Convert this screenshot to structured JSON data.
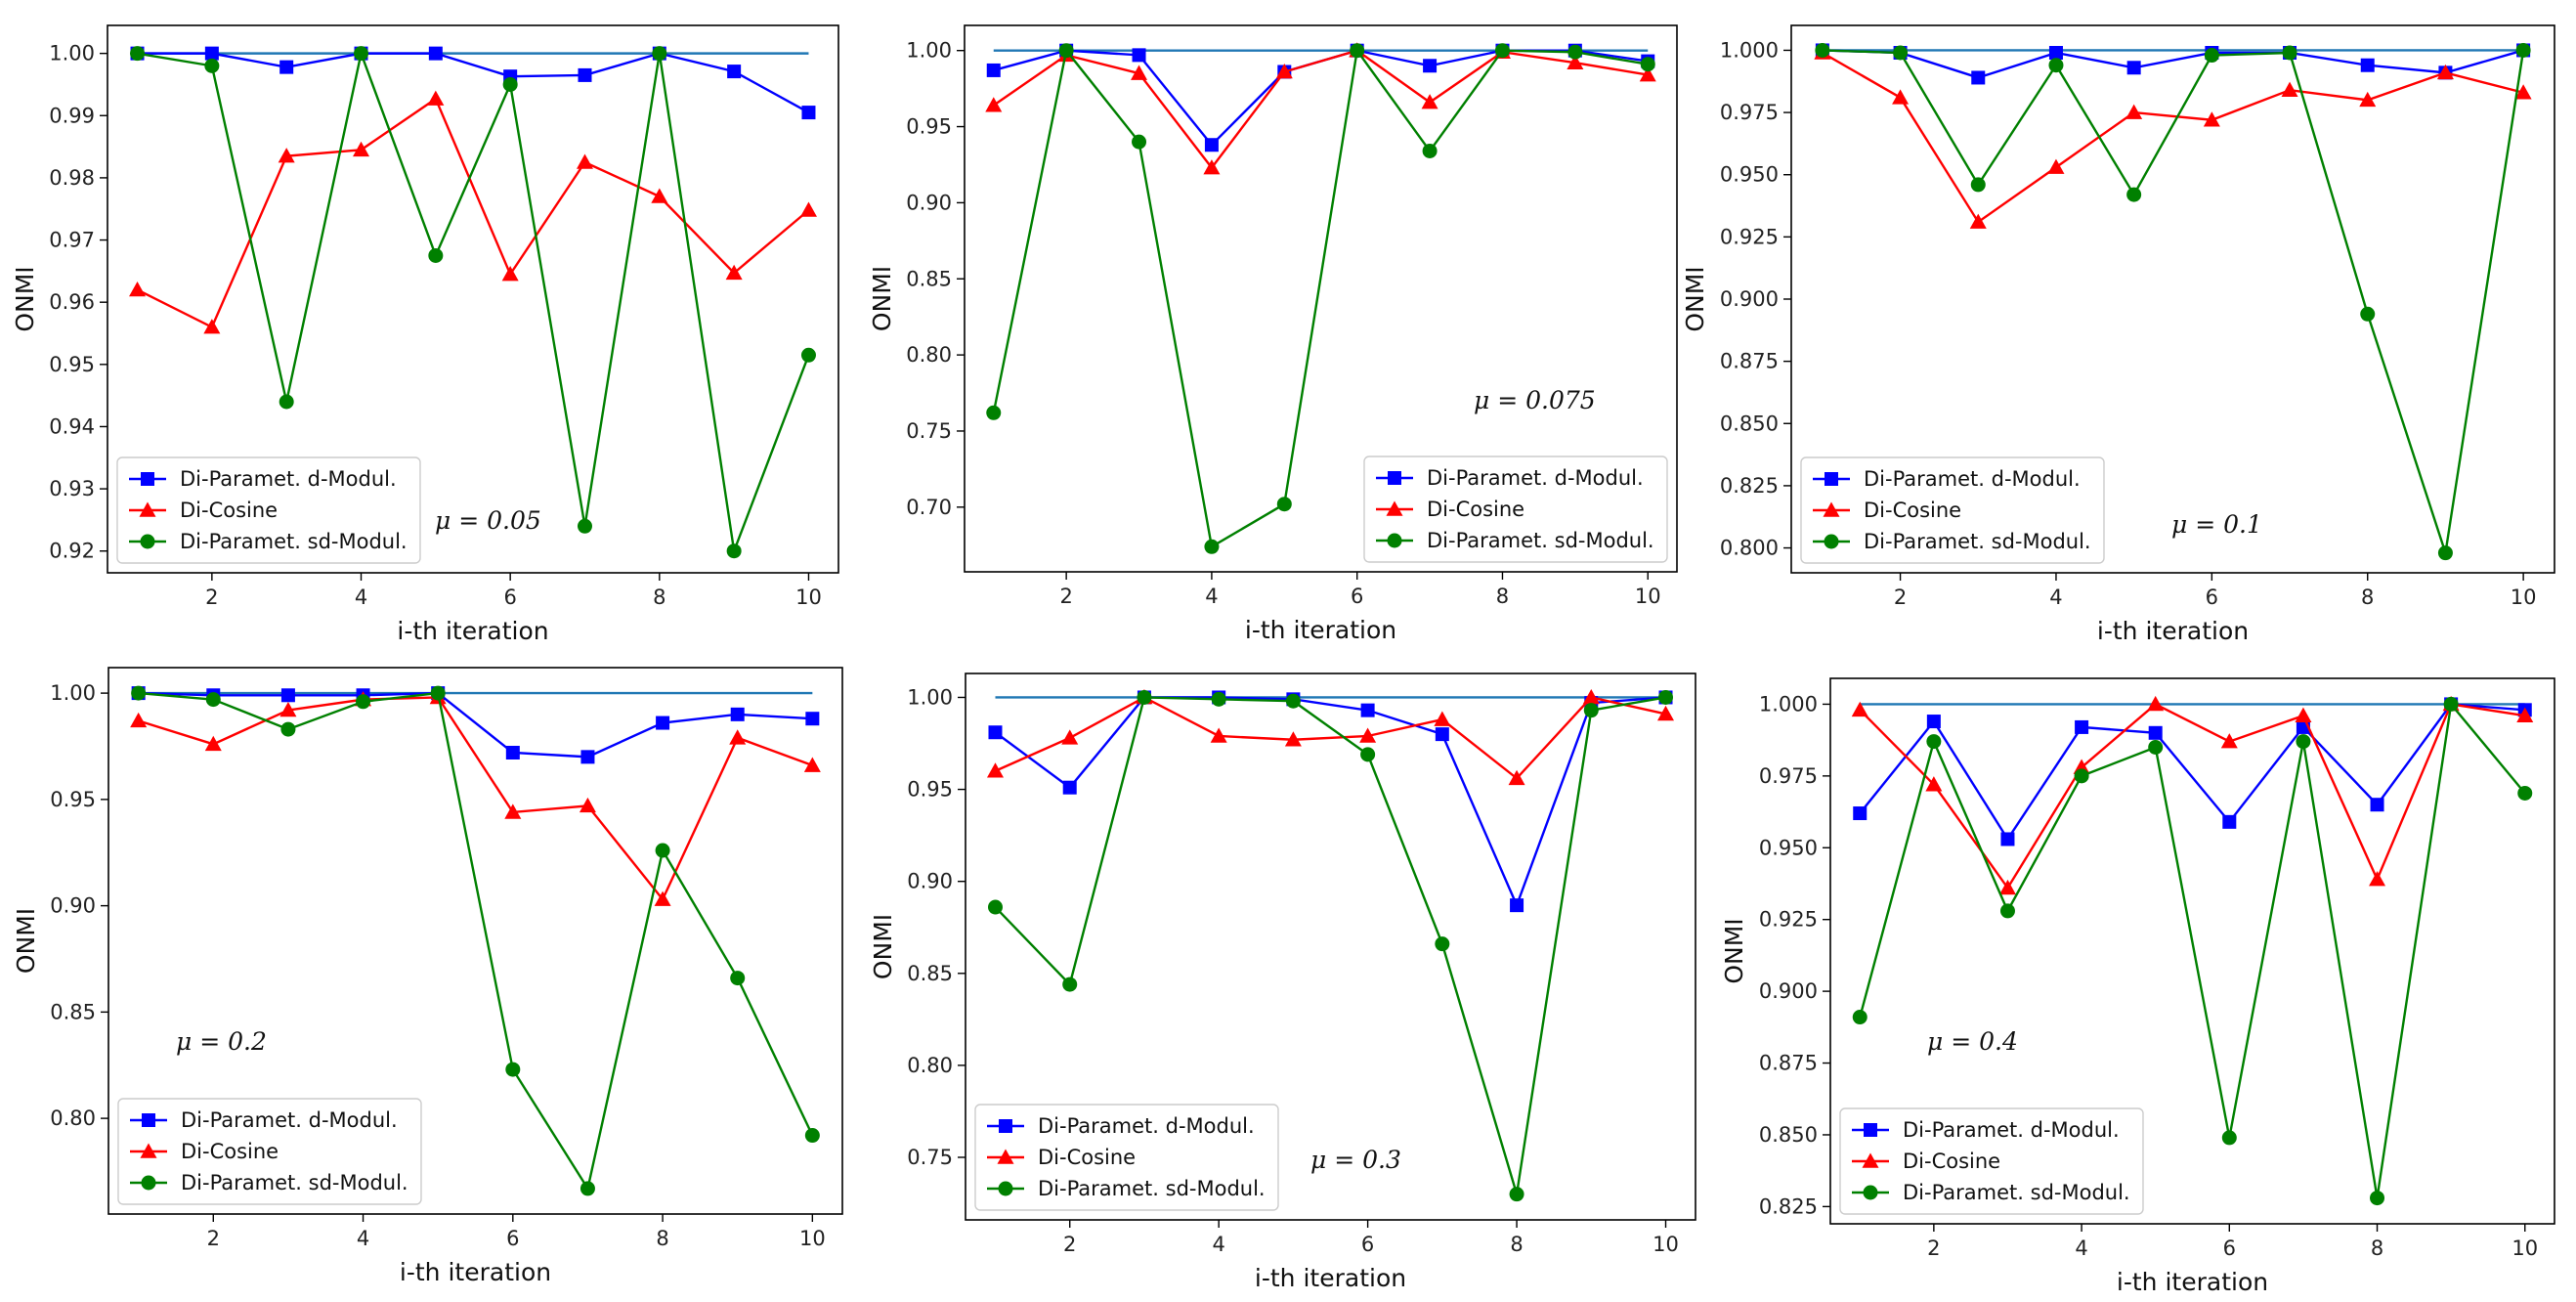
{
  "figure": {
    "series_names": [
      "Di-Paramet. d-Modul.",
      "Di-Cosine",
      "Di-Paramet. sd-Modul."
    ],
    "colors": {
      "d_modul": "#0000ff",
      "cosine": "#ff0000",
      "sd_modul": "#008000",
      "reference": "#1f77b4",
      "axes": "#000000"
    }
  },
  "chart_data": [
    {
      "type": "line",
      "annotation": "μ = 0.05",
      "xlabel": "i-th iteration",
      "ylabel": "ONMI",
      "x": [
        1,
        2,
        3,
        4,
        5,
        6,
        7,
        8,
        9,
        10
      ],
      "xlim": [
        0.6,
        10.4
      ],
      "ylim": [
        0.9165,
        1.0045
      ],
      "xticks": [
        2,
        4,
        6,
        8,
        10
      ],
      "xtick_labels": [
        "2",
        "4",
        "6",
        "8",
        "10"
      ],
      "yticks": [
        0.92,
        0.93,
        0.94,
        0.95,
        0.96,
        0.97,
        0.98,
        0.99,
        1.0
      ],
      "ytick_labels": [
        "0.92",
        "0.93",
        "0.94",
        "0.95",
        "0.96",
        "0.97",
        "0.98",
        "0.99",
        "1.00"
      ],
      "legend_position": "lower-left",
      "reference": {
        "values": [
          1,
          1,
          1,
          1,
          1,
          1,
          1,
          1,
          1,
          1
        ]
      },
      "series": [
        {
          "name": "Di-Paramet. d-Modul.",
          "marker": "square",
          "values": [
            1.0,
            1.0,
            0.9978,
            1.0,
            1.0,
            0.9963,
            0.9965,
            1.0,
            0.9971,
            0.9905
          ]
        },
        {
          "name": "Di-Cosine",
          "marker": "triangle",
          "values": [
            0.962,
            0.956,
            0.9835,
            0.9845,
            0.9927,
            0.9645,
            0.9825,
            0.977,
            0.9647,
            0.9748
          ]
        },
        {
          "name": "Di-Paramet. sd-Modul.",
          "marker": "circle",
          "values": [
            1.0,
            0.998,
            0.944,
            1.0,
            0.9675,
            0.995,
            0.924,
            1.0,
            0.92,
            0.9515
          ]
        }
      ]
    },
    {
      "type": "line",
      "annotation": "μ = 0.075",
      "xlabel": "i-th iteration",
      "ylabel": "ONMI",
      "x": [
        1,
        2,
        3,
        4,
        5,
        6,
        7,
        8,
        9,
        10
      ],
      "xlim": [
        0.6,
        10.4
      ],
      "ylim": [
        0.6575,
        1.0165
      ],
      "xticks": [
        2,
        4,
        6,
        8,
        10
      ],
      "xtick_labels": [
        "2",
        "4",
        "6",
        "8",
        "10"
      ],
      "yticks": [
        0.7,
        0.75,
        0.8,
        0.85,
        0.9,
        0.95,
        1.0
      ],
      "ytick_labels": [
        "0.70",
        "0.75",
        "0.80",
        "0.85",
        "0.90",
        "0.95",
        "1.00"
      ],
      "legend_position": "lower-right",
      "reference": {
        "values": [
          1,
          1,
          1,
          1,
          1,
          1,
          1,
          1,
          1,
          1
        ]
      },
      "series": [
        {
          "name": "Di-Paramet. d-Modul.",
          "marker": "square",
          "values": [
            0.987,
            1.0,
            0.997,
            0.938,
            0.986,
            1.0,
            0.99,
            1.0,
            1.0,
            0.993
          ]
        },
        {
          "name": "Di-Cosine",
          "marker": "triangle",
          "values": [
            0.964,
            0.997,
            0.985,
            0.923,
            0.986,
            1.0,
            0.966,
            0.999,
            0.992,
            0.984
          ]
        },
        {
          "name": "Di-Paramet. sd-Modul.",
          "marker": "circle",
          "values": [
            0.762,
            1.0,
            0.94,
            0.674,
            0.702,
            1.0,
            0.934,
            1.0,
            0.999,
            0.991
          ]
        }
      ]
    },
    {
      "type": "line",
      "annotation": "μ = 0.1",
      "xlabel": "i-th iteration",
      "ylabel": "ONMI",
      "x": [
        1,
        2,
        3,
        4,
        5,
        6,
        7,
        8,
        9,
        10
      ],
      "xlim": [
        0.6,
        10.4
      ],
      "ylim": [
        0.79,
        1.01
      ],
      "xticks": [
        2,
        4,
        6,
        8,
        10
      ],
      "xtick_labels": [
        "2",
        "4",
        "6",
        "8",
        "10"
      ],
      "yticks": [
        0.8,
        0.825,
        0.85,
        0.875,
        0.9,
        0.925,
        0.95,
        0.975,
        1.0
      ],
      "ytick_labels": [
        "0.800",
        "0.825",
        "0.850",
        "0.875",
        "0.900",
        "0.925",
        "0.950",
        "0.975",
        "1.000"
      ],
      "legend_position": "lower-left",
      "reference": {
        "values": [
          1,
          1,
          1,
          1,
          1,
          1,
          1,
          1,
          1,
          1
        ]
      },
      "series": [
        {
          "name": "Di-Paramet. d-Modul.",
          "marker": "square",
          "values": [
            1.0,
            0.999,
            0.989,
            0.999,
            0.993,
            0.999,
            0.999,
            0.994,
            0.991,
            1.0
          ]
        },
        {
          "name": "Di-Cosine",
          "marker": "triangle",
          "values": [
            0.999,
            0.981,
            0.931,
            0.953,
            0.975,
            0.972,
            0.984,
            0.98,
            0.991,
            0.983
          ]
        },
        {
          "name": "Di-Paramet. sd-Modul.",
          "marker": "circle",
          "values": [
            1.0,
            0.999,
            0.946,
            0.994,
            0.942,
            0.998,
            0.999,
            0.894,
            0.798,
            1.0
          ]
        }
      ]
    },
    {
      "type": "line",
      "annotation": "μ = 0.2",
      "xlabel": "i-th iteration",
      "ylabel": "ONMI",
      "x": [
        1,
        2,
        3,
        4,
        5,
        6,
        7,
        8,
        9,
        10
      ],
      "xlim": [
        0.6,
        10.4
      ],
      "ylim": [
        0.755,
        1.012
      ],
      "xticks": [
        2,
        4,
        6,
        8,
        10
      ],
      "xtick_labels": [
        "2",
        "4",
        "6",
        "8",
        "10"
      ],
      "yticks": [
        0.8,
        0.85,
        0.9,
        0.95,
        1.0
      ],
      "ytick_labels": [
        "0.80",
        "0.85",
        "0.90",
        "0.95",
        "1.00"
      ],
      "legend_position": "lower-left",
      "reference": {
        "values": [
          1,
          1,
          1,
          1,
          1,
          1,
          1,
          1,
          1,
          1
        ]
      },
      "series": [
        {
          "name": "Di-Paramet. d-Modul.",
          "marker": "square",
          "values": [
            1.0,
            0.999,
            0.999,
            0.999,
            1.0,
            0.972,
            0.97,
            0.986,
            0.99,
            0.988
          ]
        },
        {
          "name": "Di-Cosine",
          "marker": "triangle",
          "values": [
            0.987,
            0.976,
            0.992,
            0.997,
            0.998,
            0.944,
            0.947,
            0.903,
            0.979,
            0.966
          ]
        },
        {
          "name": "Di-Paramet. sd-Modul.",
          "marker": "circle",
          "values": [
            1.0,
            0.997,
            0.983,
            0.996,
            1.0,
            0.823,
            0.767,
            0.926,
            0.866,
            0.792
          ]
        }
      ]
    },
    {
      "type": "line",
      "annotation": "μ = 0.3",
      "xlabel": "i-th iteration",
      "ylabel": "ONMI",
      "x": [
        1,
        2,
        3,
        4,
        5,
        6,
        7,
        8,
        9,
        10
      ],
      "xlim": [
        0.6,
        10.4
      ],
      "ylim": [
        0.716,
        1.013
      ],
      "xticks": [
        2,
        4,
        6,
        8,
        10
      ],
      "xtick_labels": [
        "2",
        "4",
        "6",
        "8",
        "10"
      ],
      "yticks": [
        0.75,
        0.8,
        0.85,
        0.9,
        0.95,
        1.0
      ],
      "ytick_labels": [
        "0.75",
        "0.80",
        "0.85",
        "0.90",
        "0.95",
        "1.00"
      ],
      "legend_position": "lower-left",
      "reference": {
        "values": [
          1,
          1,
          1,
          1,
          1,
          1,
          1,
          1,
          1,
          1
        ]
      },
      "series": [
        {
          "name": "Di-Paramet. d-Modul.",
          "marker": "square",
          "values": [
            0.981,
            0.951,
            1.0,
            1.0,
            0.999,
            0.993,
            0.98,
            0.887,
            0.997,
            1.0
          ]
        },
        {
          "name": "Di-Cosine",
          "marker": "triangle",
          "values": [
            0.96,
            0.978,
            1.0,
            0.979,
            0.977,
            0.979,
            0.988,
            0.956,
            1.0,
            0.991
          ]
        },
        {
          "name": "Di-Paramet. sd-Modul.",
          "marker": "circle",
          "values": [
            0.886,
            0.844,
            1.0,
            0.999,
            0.998,
            0.969,
            0.866,
            0.73,
            0.993,
            1.0
          ]
        }
      ]
    },
    {
      "type": "line",
      "annotation": "μ = 0.4",
      "xlabel": "i-th iteration",
      "ylabel": "ONMI",
      "x": [
        1,
        2,
        3,
        4,
        5,
        6,
        7,
        8,
        9,
        10
      ],
      "xlim": [
        0.6,
        10.4
      ],
      "ylim": [
        0.819,
        1.009
      ],
      "xticks": [
        2,
        4,
        6,
        8,
        10
      ],
      "xtick_labels": [
        "2",
        "4",
        "6",
        "8",
        "10"
      ],
      "yticks": [
        0.825,
        0.85,
        0.875,
        0.9,
        0.925,
        0.95,
        0.975,
        1.0
      ],
      "ytick_labels": [
        "0.825",
        "0.850",
        "0.875",
        "0.900",
        "0.925",
        "0.950",
        "0.975",
        "1.000"
      ],
      "legend_position": "lower-left",
      "reference": {
        "values": [
          1,
          1,
          1,
          1,
          1,
          1,
          1,
          1,
          1,
          1
        ]
      },
      "series": [
        {
          "name": "Di-Paramet. d-Modul.",
          "marker": "square",
          "values": [
            0.962,
            0.994,
            0.953,
            0.992,
            0.99,
            0.959,
            0.992,
            0.965,
            1.0,
            0.998
          ]
        },
        {
          "name": "Di-Cosine",
          "marker": "triangle",
          "values": [
            0.998,
            0.972,
            0.936,
            0.978,
            1.0,
            0.987,
            0.996,
            0.939,
            1.0,
            0.996
          ]
        },
        {
          "name": "Di-Paramet. sd-Modul.",
          "marker": "circle",
          "values": [
            0.891,
            0.987,
            0.928,
            0.975,
            0.985,
            0.849,
            0.987,
            0.828,
            1.0,
            0.969
          ]
        }
      ]
    }
  ]
}
